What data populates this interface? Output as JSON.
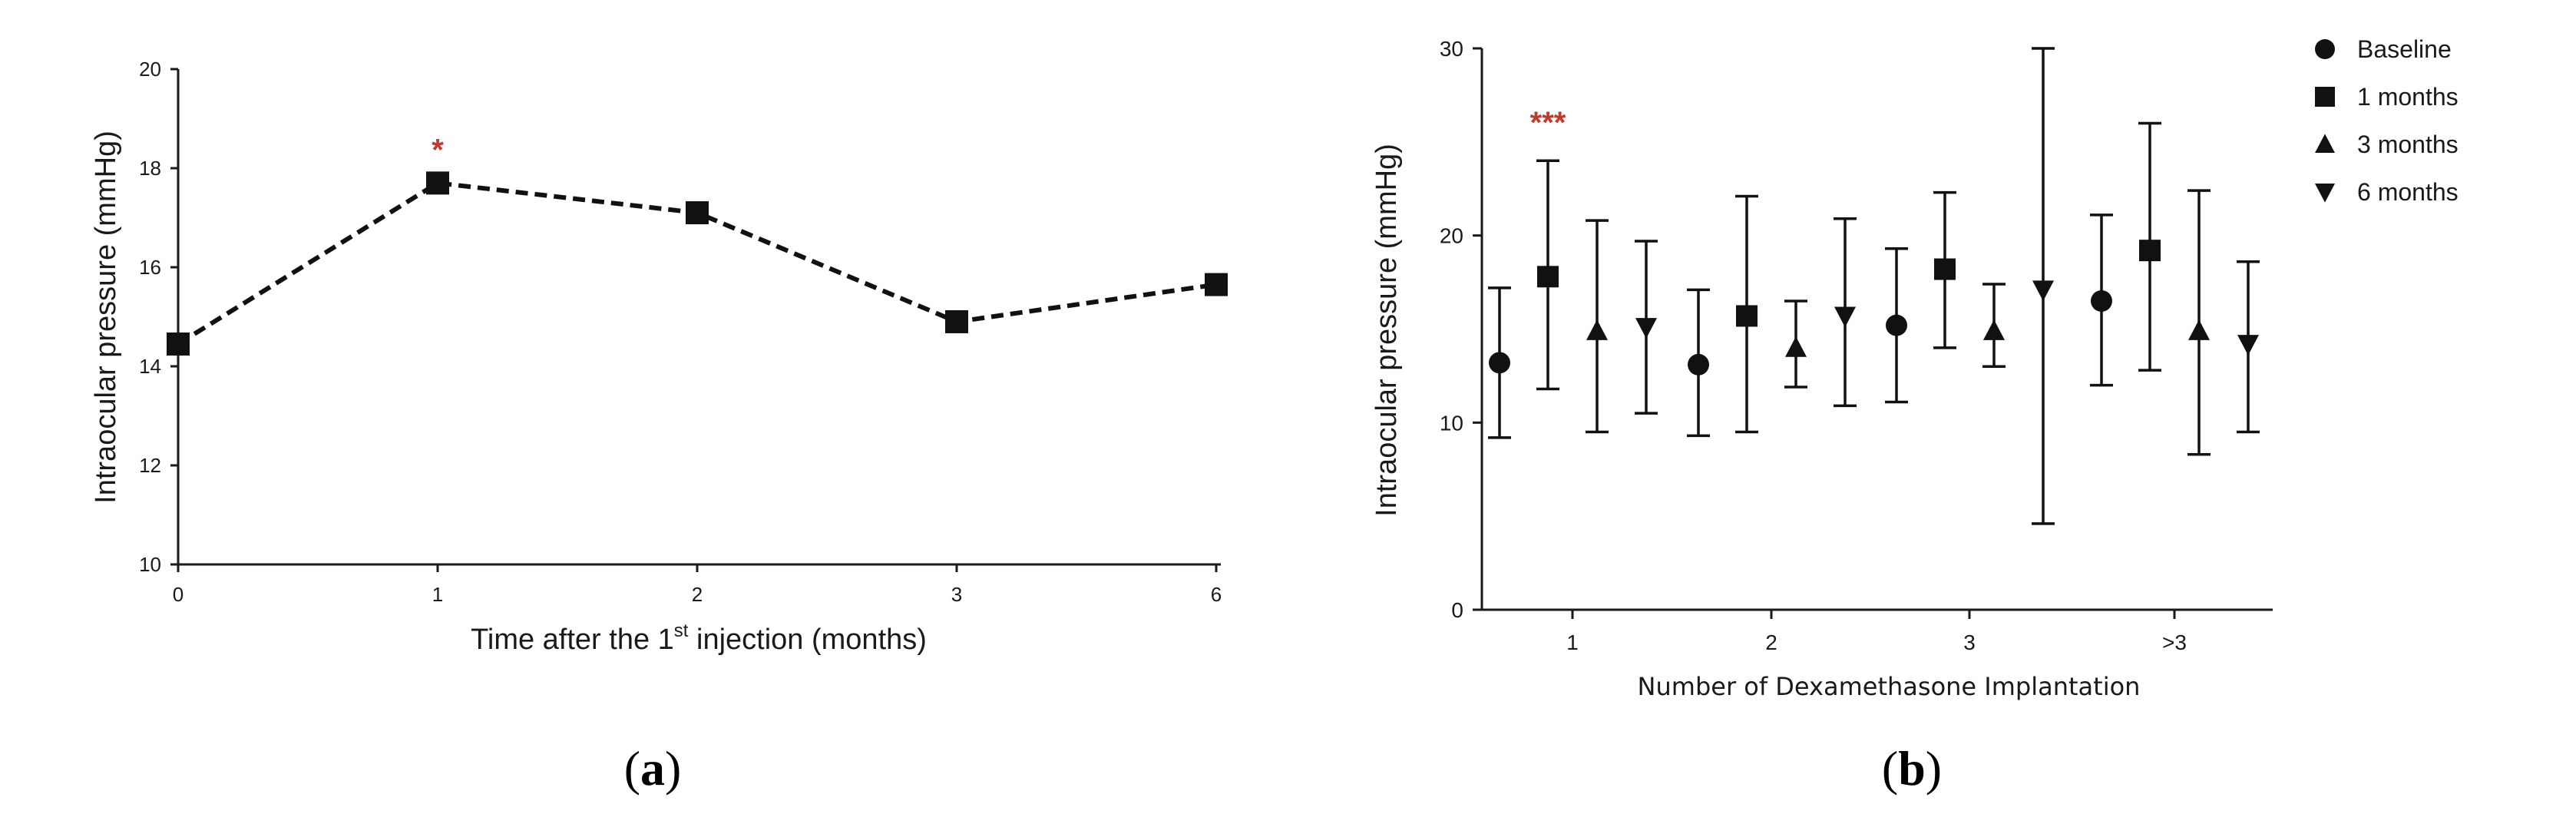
{
  "chart_data": [
    {
      "id": "a",
      "type": "line",
      "panel_label_open": "(",
      "panel_label_letter": "a",
      "panel_label_close": ")",
      "ylabel": "Intraocular pressure (mmHg)",
      "xlabel_pre": "Time after the 1",
      "xlabel_sup": "st",
      "xlabel_post": " injection (months)",
      "ylim": [
        10,
        20
      ],
      "yticks": [
        "10",
        "12",
        "14",
        "16",
        "18",
        "20"
      ],
      "categories": [
        "0",
        "1",
        "2",
        "3",
        "6"
      ],
      "values": [
        14.45,
        17.7,
        17.1,
        14.9,
        15.65
      ],
      "line_style": "dashed",
      "marker": "square",
      "annotations": [
        {
          "category_index": 1,
          "text": "*",
          "color": "#c0392b"
        }
      ]
    },
    {
      "id": "b",
      "type": "scatter",
      "panel_label_open": "(",
      "panel_label_letter": "b",
      "panel_label_close": ")",
      "ylabel": "Intraocular pressure (mmHg)",
      "xlabel": "Number of Dexamethasone Implantation",
      "ylim": [
        0,
        30
      ],
      "yticks": [
        "0",
        "10",
        "20",
        "30"
      ],
      "categories": [
        "1",
        "2",
        "3",
        ">3"
      ],
      "series": [
        {
          "name": "Baseline",
          "marker": "circle",
          "mean": [
            13.2,
            13.1,
            15.2,
            16.5
          ],
          "low": [
            9.2,
            9.3,
            11.1,
            12.0
          ],
          "high": [
            17.2,
            17.1,
            19.3,
            21.1
          ]
        },
        {
          "name": "1 months",
          "marker": "square",
          "mean": [
            17.8,
            15.7,
            18.2,
            19.2
          ],
          "low": [
            11.8,
            9.5,
            14.0,
            12.8
          ],
          "high": [
            24.0,
            22.1,
            22.3,
            26.0
          ]
        },
        {
          "name": "3 months",
          "marker": "triangle-up",
          "mean": [
            14.9,
            14.0,
            14.9,
            14.9
          ],
          "low": [
            9.5,
            11.9,
            13.0,
            8.3
          ],
          "high": [
            20.8,
            16.5,
            17.4,
            22.4
          ]
        },
        {
          "name": "6 months",
          "marker": "triangle-down",
          "mean": [
            15.1,
            15.7,
            17.1,
            14.2
          ],
          "low": [
            10.5,
            10.9,
            4.6,
            9.5
          ],
          "high": [
            19.7,
            20.9,
            30.0,
            18.6
          ]
        }
      ],
      "annotations": [
        {
          "category_index": 0,
          "series_index": 1,
          "text": "***",
          "color": "#c0392b"
        }
      ]
    }
  ]
}
